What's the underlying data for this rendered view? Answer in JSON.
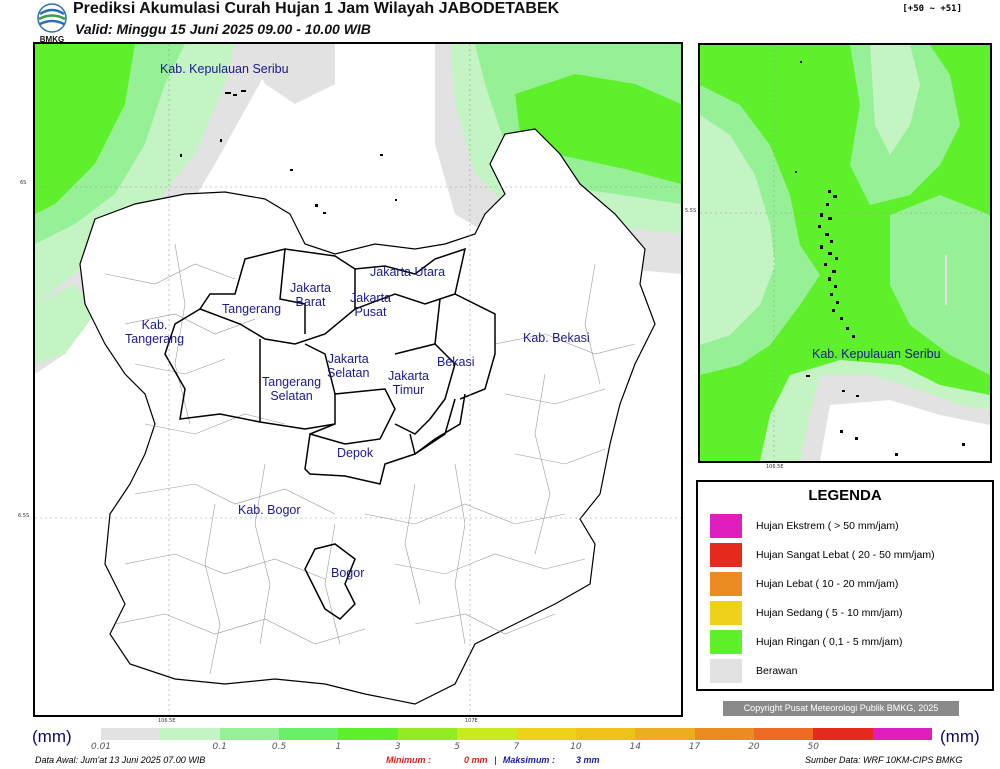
{
  "header": {
    "logo_text": "BMKG",
    "title": "Prediksi Akumulasi Curah Hujan 1 Jam Wilayah JABODETABEK",
    "subtitle": "Valid: Minggu 15 Juni 2025 09.00 - 10.00 WIB",
    "range_tag": "[+50 ~ +51]"
  },
  "main_map": {
    "labels": {
      "kepulauan_seribu": "Kab. Kepulauan Seribu",
      "jakarta_utara": "Jakarta Utara",
      "jakarta_barat": "Jakarta\nBarat",
      "jakarta_pusat": "Jakarta\nPusat",
      "tangerang": "Tangerang",
      "kab_tangerang": "Kab.\nTangerang",
      "jakarta_selatan": "Jakarta\nSelatan",
      "jakarta_timur": "Jakarta\nTimur",
      "bekasi": "Bekasi",
      "kab_bekasi": "Kab. Bekasi",
      "tangerang_selatan": "Tangerang\nSelatan",
      "depok": "Depok",
      "kab_bogor": "Kab. Bogor",
      "bogor": "Bogor"
    },
    "ticks": {
      "lat_top": "6S",
      "lat_bottom": "6.5S",
      "lon_left": "106.5E",
      "lon_right": "107E"
    }
  },
  "inset_map": {
    "label": "Kab. Kepulauan Seribu",
    "ticks": {
      "lat": "5.5S",
      "lon": "106.5E"
    }
  },
  "legend": {
    "title": "LEGENDA",
    "items": [
      {
        "label": "Hujan Ekstrem ( > 50 mm/jam)",
        "color": "#e01ec0"
      },
      {
        "label": "Hujan Sangat Lebat ( 20 - 50 mm/jam)",
        "color": "#e62a1e"
      },
      {
        "label": "Hujan Lebat ( 10 - 20 mm/jam)",
        "color": "#ec8b22"
      },
      {
        "label": "Hujan Sedang ( 5 - 10 mm/jam)",
        "color": "#efd11a"
      },
      {
        "label": "Hujan Ringan ( 0,1 - 5 mm/jam)",
        "color": "#5ef02a"
      },
      {
        "label": "Berawan",
        "color": "#e2e2e2"
      }
    ]
  },
  "copyright": "Copyright Pusat Meteorologi Publik BMKG, 2025",
  "scale": {
    "unit": "(mm)",
    "colors": [
      "#e2e2e2",
      "#c4f4c4",
      "#96f096",
      "#6aef6a",
      "#5ef02a",
      "#93ec22",
      "#c8ea1e",
      "#efd11a",
      "#eec219",
      "#ecad20",
      "#ec8b22",
      "#ec6a22",
      "#e62a1e",
      "#e01ec0"
    ],
    "ticks": [
      "0.01",
      "0.1",
      "0.5",
      "1",
      "3",
      "5",
      "7",
      "10",
      "14",
      "17",
      "20",
      "50"
    ]
  },
  "footer": {
    "data_awal": "Data Awal: Jum'at 13 Juni 2025 07.00 WIB",
    "minimum_label": "Minimum :",
    "minimum_value": "0 mm",
    "separator": "|",
    "maksimum_label": "Maksimum :",
    "maksimum_value": "3 mm",
    "sumber": "Sumber Data: WRF 10KM-CIPS BMKG"
  }
}
